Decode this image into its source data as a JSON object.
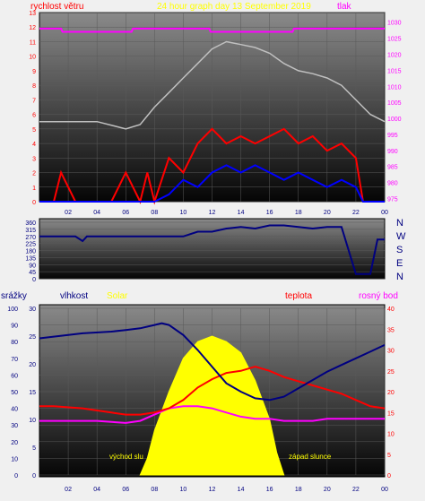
{
  "header": {
    "wind_label": "rychlost větru",
    "title": "24 hour graph day   13 September 2019",
    "pressure_label": "tlak"
  },
  "labels2": {
    "precip": "srážky",
    "humidity": "vlhkost",
    "solar": "Solar",
    "temperature": "teplota",
    "dew": "rosný bod"
  },
  "annotations": {
    "sunrise": "východ slu",
    "sunset": "západ slunce"
  },
  "compass": [
    "N",
    "W",
    "S",
    "E",
    "N"
  ],
  "colors": {
    "wind": "#ff0000",
    "gust": "#0000ff",
    "pressure": "#ff00ff",
    "winddir": "#000080",
    "humidity": "#000080",
    "temperature": "#ff0000",
    "dew": "#ff00ff",
    "solar": "#ffff00",
    "lux": "#c0c0c0",
    "gray_curve": "#808080"
  },
  "chart_data": [
    {
      "type": "line",
      "name": "wind_pressure",
      "x_ticks": [
        "02",
        "04",
        "06",
        "08",
        "10",
        "12",
        "14",
        "16",
        "18",
        "20",
        "22",
        "00"
      ],
      "y_left_ticks": [
        "0",
        "1",
        "2",
        "3",
        "4",
        "5",
        "6",
        "7",
        "8",
        "9",
        "10",
        "11",
        "12",
        "13"
      ],
      "y_left_lim": [
        0,
        13
      ],
      "y_right_ticks": [
        "975",
        "980",
        "985",
        "990",
        "995",
        "1000",
        "1005",
        "1010",
        "1015",
        "1020",
        "1025",
        "1030"
      ],
      "y_right_lim": [
        974,
        1033
      ],
      "pressure": {
        "x": [
          0,
          1.5,
          1.6,
          6.4,
          6.5,
          11.8,
          11.9,
          17.6,
          17.7,
          24
        ],
        "y": [
          1028,
          1028,
          1027,
          1027,
          1028,
          1028,
          1027,
          1027,
          1028,
          1028
        ]
      },
      "gray_series": {
        "x": [
          0,
          2,
          4,
          6,
          7,
          8,
          9,
          10,
          11,
          12,
          13,
          14,
          15,
          16,
          17,
          18,
          19,
          20,
          21,
          22,
          23,
          24
        ],
        "y": [
          5.5,
          5.5,
          5.5,
          5.0,
          5.3,
          6.5,
          7.5,
          8.5,
          9.5,
          10.5,
          11,
          10.8,
          10.6,
          10.2,
          9.5,
          9.0,
          8.8,
          8.5,
          8.0,
          7.0,
          6.0,
          5.5
        ]
      },
      "wind_speed": {
        "x": [
          0,
          1,
          1.5,
          2.5,
          3,
          5,
          6,
          7,
          7.5,
          8,
          9,
          10,
          11,
          12,
          13,
          14,
          15,
          16,
          17,
          18,
          19,
          20,
          21,
          22,
          22.5,
          23,
          24
        ],
        "y": [
          0,
          0,
          2,
          0,
          0,
          0,
          2,
          0,
          2,
          0,
          3,
          2,
          4,
          5,
          4,
          4.5,
          4,
          4.5,
          5,
          4,
          4.5,
          3.5,
          4,
          3,
          0,
          0,
          0
        ]
      },
      "wind_gust": {
        "x": [
          0,
          8,
          9,
          10,
          11,
          12,
          13,
          14,
          15,
          16,
          17,
          18,
          19,
          20,
          21,
          22,
          22.5,
          24
        ],
        "y": [
          0,
          0,
          0.5,
          1.5,
          1,
          2,
          2.5,
          2,
          2.5,
          2,
          1.5,
          2,
          1.5,
          1,
          1.5,
          1,
          0,
          0
        ]
      }
    },
    {
      "type": "line",
      "name": "wind_direction",
      "y_ticks": [
        "0",
        "45",
        "90",
        "135",
        "180",
        "225",
        "270",
        "315",
        "360"
      ],
      "ylim": [
        0,
        360
      ],
      "series": {
        "x": [
          0,
          2.5,
          3,
          3.3,
          10,
          11,
          12,
          13,
          14,
          15,
          16,
          17,
          18,
          19,
          20,
          21,
          22,
          23,
          23.5,
          24
        ],
        "y": [
          270,
          270,
          240,
          270,
          270,
          300,
          300,
          320,
          330,
          320,
          340,
          340,
          330,
          320,
          330,
          330,
          30,
          30,
          250,
          250
        ]
      }
    },
    {
      "type": "line",
      "name": "humidity_temperature_solar",
      "x_ticks": [
        "02",
        "04",
        "06",
        "08",
        "10",
        "12",
        "14",
        "16",
        "18",
        "20",
        "22",
        "00"
      ],
      "y_left_outer_ticks": [
        "0",
        "10",
        "20",
        "30",
        "40",
        "50",
        "60",
        "70",
        "80",
        "90",
        "100"
      ],
      "y_left_inner_ticks": [
        "0",
        "5",
        "10",
        "15",
        "20",
        "25",
        "30"
      ],
      "y_right_ticks": [
        "0",
        "5",
        "10",
        "15",
        "20",
        "25",
        "30",
        "35",
        "40"
      ],
      "humidity": {
        "x": [
          0,
          1,
          3,
          5,
          6,
          7,
          8,
          8.5,
          9,
          10,
          11,
          12,
          13,
          14,
          15,
          16,
          17,
          18,
          19,
          20,
          21,
          22,
          23,
          24
        ],
        "y": [
          82,
          83,
          85,
          86,
          87,
          88,
          90,
          91,
          90,
          84,
          75,
          65,
          55,
          50,
          46,
          45,
          47,
          52,
          57,
          62,
          66,
          70,
          74,
          78
        ]
      },
      "temperature": {
        "x": [
          0,
          1,
          3,
          5,
          6,
          7,
          8,
          9,
          10,
          11,
          12,
          13,
          14,
          15,
          16,
          17,
          18,
          19,
          20,
          21,
          22,
          23,
          24
        ],
        "y": [
          16.5,
          16.5,
          16,
          15,
          14.5,
          14.5,
          15,
          16,
          18,
          21,
          23,
          24.5,
          25,
          26,
          25,
          23.5,
          22.5,
          21.5,
          20.5,
          19.5,
          18,
          16.5,
          16
        ]
      },
      "dew_point": {
        "x": [
          0,
          2,
          4,
          6,
          7,
          8,
          9,
          10,
          11,
          12,
          13,
          14,
          15,
          16,
          17,
          18,
          19,
          20,
          21,
          22,
          23,
          24
        ],
        "y": [
          13,
          13,
          13,
          12.5,
          13,
          14.5,
          16,
          16.5,
          16.5,
          16,
          15,
          14,
          13.5,
          13.5,
          13,
          13,
          13,
          13.5,
          13.5,
          13.5,
          13.5,
          13.5
        ]
      },
      "solar": {
        "x": [
          7,
          7.5,
          8,
          9,
          10,
          11,
          12,
          13,
          14,
          15,
          16,
          16.5,
          17
        ],
        "y": [
          0,
          3,
          8,
          15,
          21,
          24,
          25,
          24,
          22,
          17,
          10,
          4,
          0
        ]
      }
    }
  ]
}
